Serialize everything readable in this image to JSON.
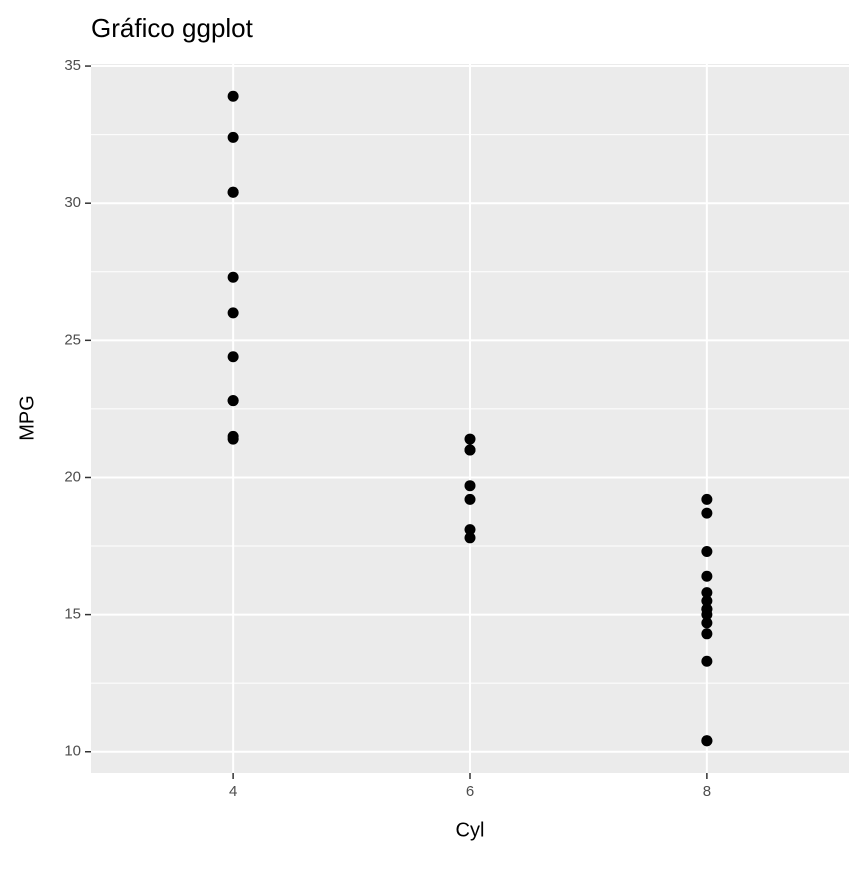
{
  "chart_data": {
    "type": "scatter",
    "title": "Gráfico ggplot",
    "x_label": "Cyl",
    "y_label": "MPG",
    "series": [
      {
        "name": "mpg",
        "color": "#000000",
        "x": [
          4,
          4,
          4,
          4,
          4,
          4,
          4,
          4,
          4,
          4,
          4,
          6,
          6,
          6,
          6,
          6,
          6,
          6,
          8,
          8,
          8,
          8,
          8,
          8,
          8,
          8,
          8,
          8,
          8,
          8,
          8,
          8
        ],
        "values": [
          22.8,
          24.4,
          22.8,
          32.4,
          30.4,
          33.9,
          21.5,
          27.3,
          26.0,
          30.4,
          21.4,
          21.0,
          21.0,
          21.4,
          18.1,
          19.2,
          17.8,
          19.7,
          18.7,
          14.3,
          16.4,
          17.3,
          15.2,
          10.4,
          10.4,
          14.7,
          15.5,
          15.2,
          13.3,
          19.2,
          15.8,
          15.0
        ]
      }
    ],
    "xlim": [
      2.8,
      9.2
    ],
    "xticks": [
      4,
      6,
      8
    ],
    "ylim": [
      9.225,
      35.075
    ],
    "yticks": [
      10,
      15,
      20,
      25,
      30,
      35
    ],
    "yminor_ticks": [
      12.5,
      17.5,
      22.5,
      27.5,
      32.5
    ],
    "grid": true,
    "panel_color": "#ebebeb"
  }
}
